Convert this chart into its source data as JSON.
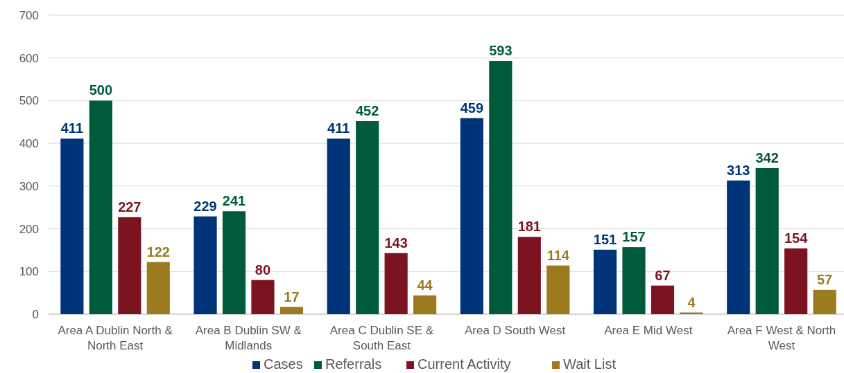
{
  "chart_data": {
    "type": "bar",
    "categories": [
      "Area A Dublin North & North East",
      "Area B Dublin SW & Midlands",
      "Area C Dublin SE & South East",
      "Area D South West",
      "Area E Mid West",
      "Area F West & North West"
    ],
    "series": [
      {
        "name": "Cases",
        "color": "#003478",
        "values": [
          411,
          229,
          411,
          459,
          151,
          313
        ]
      },
      {
        "name": "Referrals",
        "color": "#005a3c",
        "values": [
          500,
          241,
          452,
          593,
          157,
          342
        ]
      },
      {
        "name": "Current Activity",
        "color": "#7b1420",
        "values": [
          227,
          80,
          143,
          181,
          67,
          154
        ]
      },
      {
        "name": "Wait List",
        "color": "#9c7a1e",
        "values": [
          122,
          17,
          44,
          114,
          4,
          57
        ]
      }
    ],
    "ylim": [
      0,
      700
    ],
    "yticks": [
      0,
      100,
      200,
      300,
      400,
      500,
      600,
      700
    ],
    "grid": "y",
    "legend": "bottom",
    "data_labels": true
  }
}
